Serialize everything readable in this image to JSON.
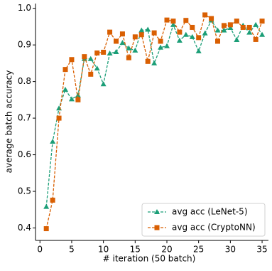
{
  "chart_data": {
    "type": "line",
    "x_label": "# iteration (50 batch)",
    "y_label": "average batch accuracy",
    "x": [
      1,
      2,
      3,
      4,
      5,
      6,
      7,
      8,
      9,
      10,
      11,
      12,
      13,
      14,
      15,
      16,
      17,
      18,
      19,
      20,
      21,
      22,
      23,
      24,
      25,
      26,
      27,
      28,
      29,
      30,
      31,
      32,
      33,
      34,
      35
    ],
    "series": [
      {
        "name": "avg acc (LeNet-5)",
        "color": "#1b9e77",
        "marker": "triangle",
        "values": [
          0.458,
          0.636,
          0.727,
          0.778,
          0.752,
          0.762,
          0.862,
          0.862,
          0.836,
          0.793,
          0.877,
          0.881,
          0.906,
          0.891,
          0.885,
          0.94,
          0.942,
          0.85,
          0.893,
          0.897,
          0.955,
          0.912,
          0.928,
          0.922,
          0.883,
          0.932,
          0.967,
          0.94,
          0.94,
          0.947,
          0.914,
          0.953,
          0.934,
          0.955,
          0.928
        ]
      },
      {
        "name": "avg acc (CryptoNN)",
        "color": "#d95f02",
        "marker": "square",
        "values": [
          0.398,
          0.476,
          0.7,
          0.833,
          0.86,
          0.75,
          0.868,
          0.82,
          0.878,
          0.88,
          0.935,
          0.91,
          0.93,
          0.865,
          0.922,
          0.928,
          0.855,
          0.933,
          0.91,
          0.968,
          0.965,
          0.935,
          0.967,
          0.948,
          0.92,
          0.982,
          0.972,
          0.91,
          0.953,
          0.955,
          0.965,
          0.948,
          0.948,
          0.915,
          0.965
        ]
      }
    ],
    "xlim": [
      -0.7,
      36.0
    ],
    "ylim": [
      0.366,
      1.013
    ],
    "xticks": [
      0,
      5,
      10,
      15,
      20,
      25,
      30,
      35
    ],
    "yticks": [
      0.4,
      0.5,
      0.6,
      0.7,
      0.8,
      0.9,
      {
        "value": 1.0,
        "label": "1.0"
      }
    ],
    "legend": "lower right"
  }
}
